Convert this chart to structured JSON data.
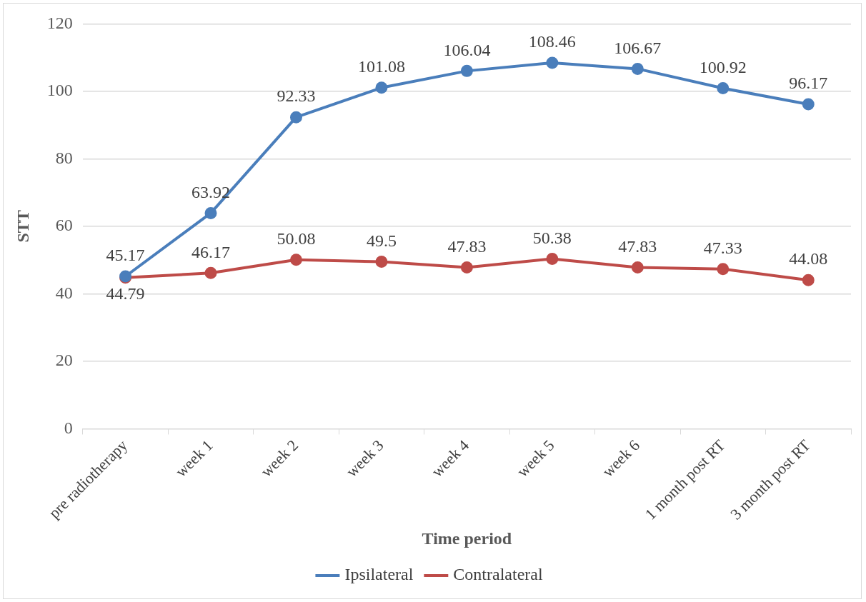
{
  "chart_data": {
    "type": "line",
    "xlabel": "Time period",
    "ylabel": "STT",
    "categories": [
      "pre radiotherapy",
      "week 1",
      "week 2",
      "week 3",
      "week 4",
      "week 5",
      "week 6",
      "1 month post RT",
      "3 month post RT"
    ],
    "series": [
      {
        "name": "Ipsilateral",
        "color": "#4a7ebb",
        "values": [
          45.17,
          63.92,
          92.33,
          101.08,
          106.04,
          108.46,
          106.67,
          100.92,
          96.17
        ]
      },
      {
        "name": "Contralateral",
        "color": "#be4b48",
        "values": [
          44.79,
          46.17,
          50.08,
          49.5,
          47.83,
          50.38,
          47.83,
          47.33,
          44.08
        ]
      }
    ],
    "ylim": [
      0,
      120
    ],
    "yticks": [
      0,
      20,
      40,
      60,
      80,
      100,
      120
    ],
    "grid": "y",
    "legend": "bottom",
    "marker": "circle",
    "line_style": "solid",
    "data_labels": true
  }
}
